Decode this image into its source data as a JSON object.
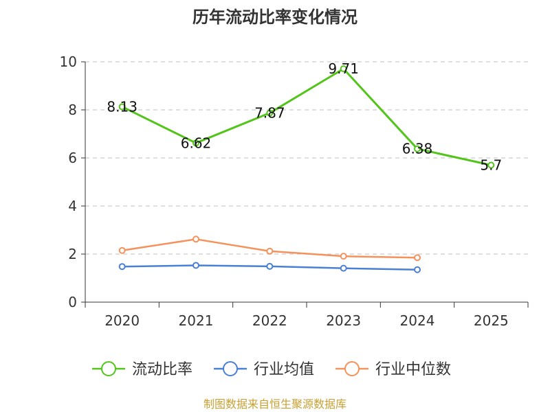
{
  "chart_data": {
    "type": "line",
    "title": "历年流动比率变化情况",
    "categories": [
      "2020",
      "2021",
      "2022",
      "2023",
      "2024",
      "2025"
    ],
    "ylim": [
      0,
      10
    ],
    "yticks": [
      0,
      2,
      4,
      6,
      8,
      10
    ],
    "grid": true,
    "legend_position": "bottom",
    "series": [
      {
        "name": "流动比率",
        "color": "#52c41a",
        "values": [
          8.13,
          6.62,
          7.87,
          9.71,
          6.38,
          5.7
        ],
        "labels": [
          "8.13",
          "6.62",
          "7.87",
          "9.71",
          "6.38",
          "5.7"
        ]
      },
      {
        "name": "行业均值",
        "color": "#4a7fd6",
        "values": [
          1.48,
          1.53,
          1.49,
          1.41,
          1.35,
          null
        ]
      },
      {
        "name": "行业中位数",
        "color": "#f5915a",
        "values": [
          2.15,
          2.62,
          2.12,
          1.91,
          1.85,
          null
        ]
      }
    ],
    "source": "制图数据来自恒生聚源数据库",
    "source_color": "#c8a032"
  }
}
